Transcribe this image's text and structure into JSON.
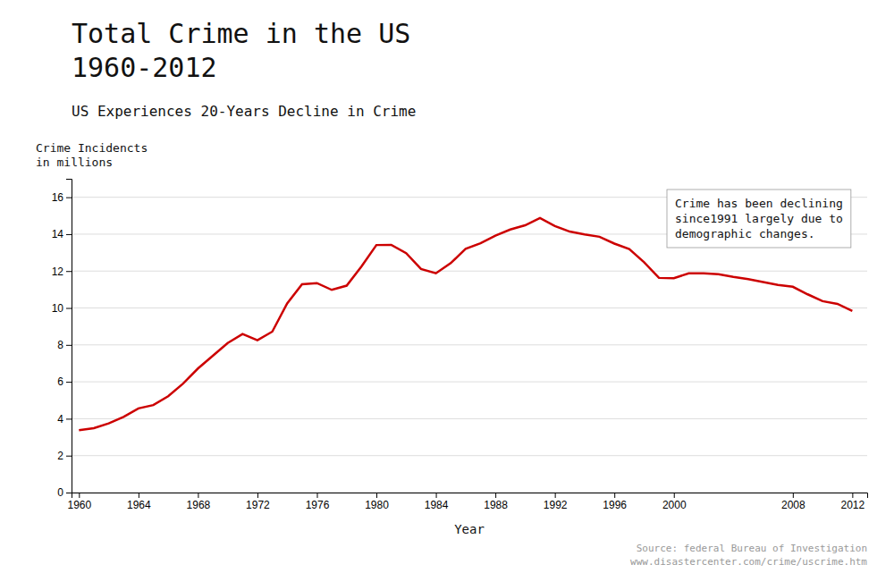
{
  "chart_data": {
    "type": "line",
    "title": "Total Crime in the US\n1960-2012",
    "subtitle": "US Experiences 20-Years Decline in Crime",
    "x_label": "Year",
    "y_label": "Crime Incidencts\nin millions",
    "annotation": "Crime has been declining\nsince1991 largely due to\ndemographic changes.",
    "source": "Source: federal Bureau of Investigation\nwww.disastercenter.com/crime/uscrime.htm",
    "x": [
      1960,
      1961,
      1962,
      1963,
      1964,
      1965,
      1966,
      1967,
      1968,
      1969,
      1970,
      1971,
      1972,
      1973,
      1974,
      1975,
      1976,
      1977,
      1978,
      1979,
      1980,
      1981,
      1982,
      1983,
      1984,
      1985,
      1986,
      1987,
      1988,
      1989,
      1990,
      1991,
      1992,
      1993,
      1994,
      1995,
      1996,
      1997,
      1998,
      1999,
      2000,
      2001,
      2002,
      2003,
      2004,
      2005,
      2006,
      2007,
      2008,
      2009,
      2010,
      2011,
      2012
    ],
    "values": [
      3.38,
      3.49,
      3.75,
      4.1,
      4.56,
      4.74,
      5.22,
      5.9,
      6.72,
      7.41,
      8.1,
      8.59,
      8.25,
      8.72,
      10.25,
      11.29,
      11.35,
      10.98,
      11.21,
      12.25,
      13.41,
      13.42,
      12.97,
      12.11,
      11.88,
      12.43,
      13.21,
      13.51,
      13.92,
      14.25,
      14.48,
      14.87,
      14.44,
      14.14,
      13.99,
      13.86,
      13.49,
      13.19,
      12.48,
      11.63,
      11.61,
      11.88,
      11.88,
      11.83,
      11.68,
      11.56,
      11.41,
      11.25,
      11.15,
      10.74,
      10.37,
      10.22,
      9.84
    ],
    "color": "#cc0000",
    "xlim": [
      1959.5,
      2013
    ],
    "ylim": [
      0,
      17
    ],
    "xticks": [
      1960,
      1964,
      1968,
      1972,
      1976,
      1980,
      1984,
      1988,
      1992,
      1996,
      2000,
      2008,
      2012
    ],
    "yticks": [
      0,
      2,
      4,
      6,
      8,
      10,
      12,
      14,
      16
    ],
    "grid": true
  }
}
